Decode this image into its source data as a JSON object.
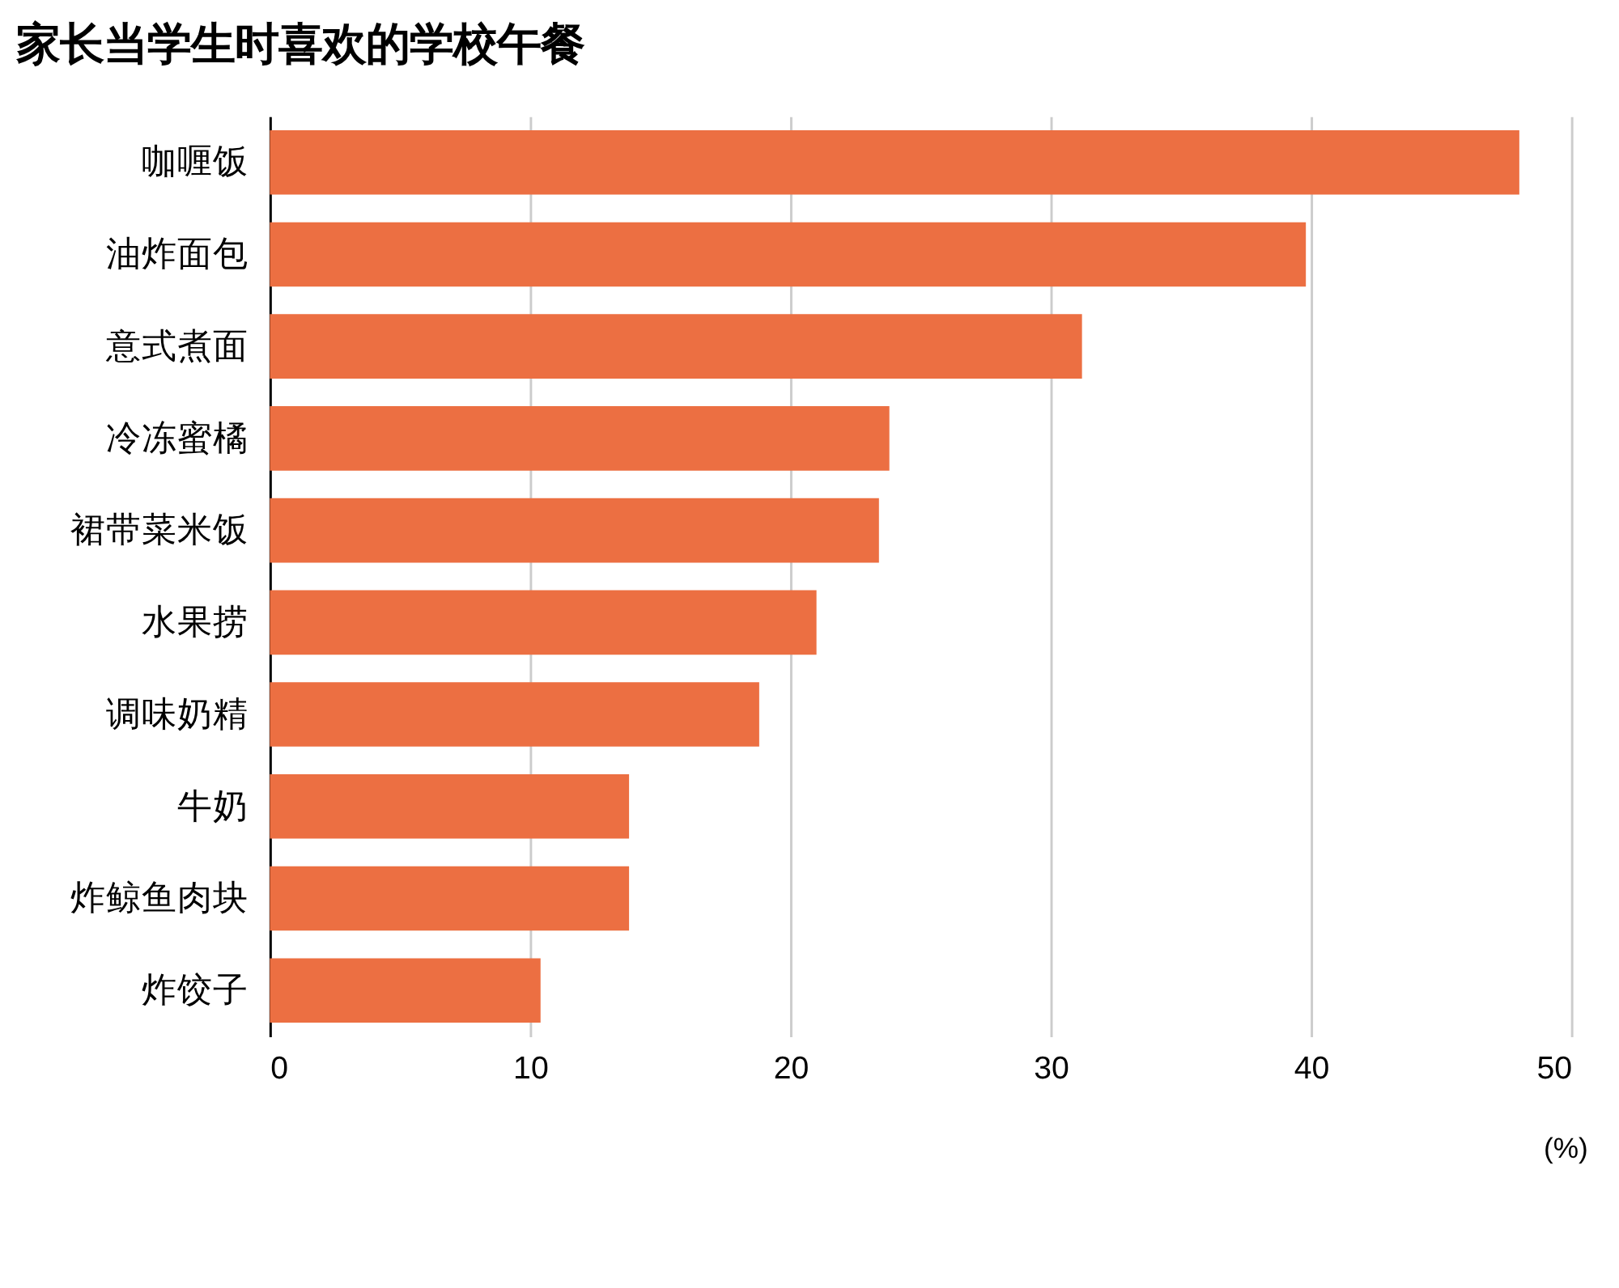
{
  "chart_data": {
    "type": "bar",
    "orientation": "horizontal",
    "title": "家长当学生时喜欢的学校午餐",
    "xlabel": "(%)",
    "categories": [
      "咖喱饭",
      "油炸面包",
      "意式煮面",
      "冷冻蜜橘",
      "裙带菜米饭",
      "水果捞",
      "调味奶精",
      "牛奶",
      "炸鲸鱼肉块",
      "炸饺子"
    ],
    "values": [
      48.0,
      39.8,
      31.2,
      23.8,
      23.4,
      21.0,
      18.8,
      13.8,
      13.8,
      10.4
    ],
    "color": "#ec6f42",
    "xlim": [
      0,
      50
    ],
    "xticks": [
      0,
      10,
      20,
      30,
      40,
      50
    ],
    "grid": "x"
  }
}
